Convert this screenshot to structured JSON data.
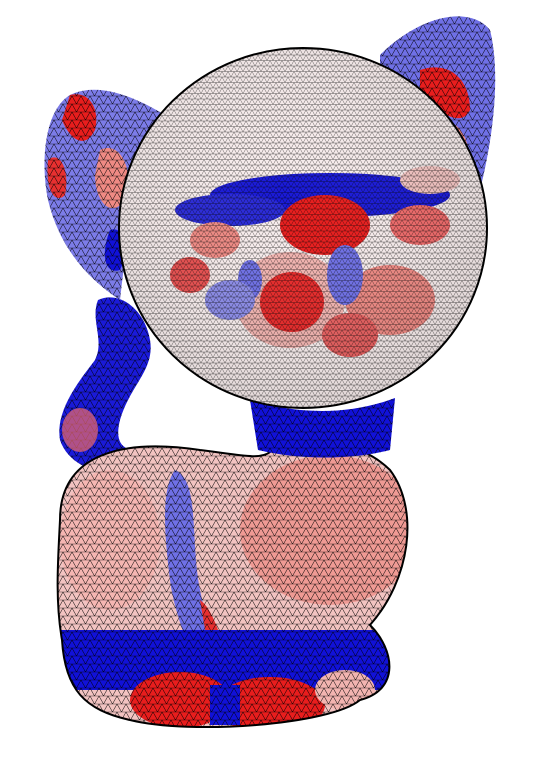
{
  "figure": {
    "subject": "cat-mesh",
    "colors": {
      "background": "#ffffff",
      "neutral": "#ffffff",
      "warm_light": "#f4c9c6",
      "warm": "#ef8a84",
      "hot": "#e81d1d",
      "cool_light": "#c8c9f5",
      "cool": "#6f70e6",
      "cold": "#1111d8",
      "wire": "#000000"
    }
  }
}
